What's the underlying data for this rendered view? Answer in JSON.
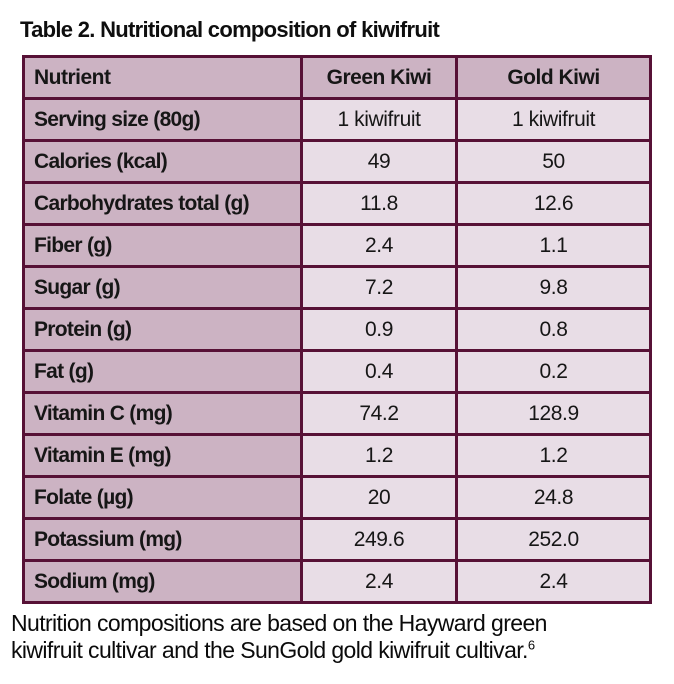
{
  "title": "Table 2. Nutritional composition of kiwifruit",
  "colors": {
    "border": "#571136",
    "header_bg": "#ccb3c3",
    "value_bg": "#e8dde6",
    "text": "#111111",
    "page_bg": "#ffffff"
  },
  "table": {
    "columns": [
      "Nutrient",
      "Green Kiwi",
      "Gold Kiwi"
    ],
    "rows": [
      {
        "label": "Serving size (80g)",
        "green": "1 kiwifruit",
        "gold": "1 kiwifruit"
      },
      {
        "label": "Calories (kcal)",
        "green": "49",
        "gold": "50"
      },
      {
        "label": "Carbohydrates total (g)",
        "green": "11.8",
        "gold": "12.6"
      },
      {
        "label": "Fiber (g)",
        "green": "2.4",
        "gold": "1.1"
      },
      {
        "label": "Sugar (g)",
        "green": "7.2",
        "gold": "9.8"
      },
      {
        "label": "Protein (g)",
        "green": "0.9",
        "gold": "0.8"
      },
      {
        "label": "Fat (g)",
        "green": "0.4",
        "gold": "0.2"
      },
      {
        "label": "Vitamin C (mg)",
        "green": "74.2",
        "gold": "128.9"
      },
      {
        "label": "Vitamin E (mg)",
        "green": "1.2",
        "gold": "1.2"
      },
      {
        "label": "Folate (µg)",
        "green": "20",
        "gold": "24.8"
      },
      {
        "label": "Potassium (mg)",
        "green": "249.6",
        "gold": "252.0"
      },
      {
        "label": "Sodium (mg)",
        "green": "2.4",
        "gold": "2.4"
      }
    ]
  },
  "footnote": {
    "line1": "Nutrition compositions are based on the Hayward green",
    "line2": "kiwifruit cultivar and the SunGold gold kiwifruit cultivar.",
    "reference": "6"
  },
  "chart_data": {
    "type": "table",
    "title": "Table 2. Nutritional composition of kiwifruit",
    "columns": [
      "Nutrient",
      "Green Kiwi",
      "Gold Kiwi"
    ],
    "rows": [
      [
        "Serving size (80g)",
        "1 kiwifruit",
        "1 kiwifruit"
      ],
      [
        "Calories (kcal)",
        49,
        50
      ],
      [
        "Carbohydrates total (g)",
        11.8,
        12.6
      ],
      [
        "Fiber (g)",
        2.4,
        1.1
      ],
      [
        "Sugar (g)",
        7.2,
        9.8
      ],
      [
        "Protein (g)",
        0.9,
        0.8
      ],
      [
        "Fat (g)",
        0.4,
        0.2
      ],
      [
        "Vitamin C (mg)",
        74.2,
        128.9
      ],
      [
        "Vitamin E (mg)",
        1.2,
        1.2
      ],
      [
        "Folate (µg)",
        20,
        24.8
      ],
      [
        "Potassium (mg)",
        249.6,
        252.0
      ],
      [
        "Sodium (mg)",
        2.4,
        2.4
      ]
    ],
    "footnote": "Nutrition compositions are based on the Hayward green kiwifruit cultivar and the SunGold gold kiwifruit cultivar.[6]"
  }
}
